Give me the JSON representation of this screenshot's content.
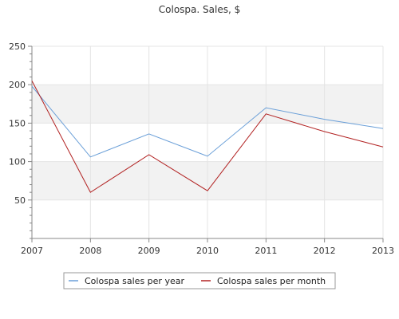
{
  "chart_data": {
    "type": "line",
    "title": "Colospa. Sales, $",
    "xlabel": "",
    "ylabel": "",
    "x": [
      "2007",
      "2008",
      "2009",
      "2010",
      "2011",
      "2012",
      "2013"
    ],
    "ylim": [
      0,
      250
    ],
    "yticks": [
      50,
      100,
      150,
      200,
      250
    ],
    "series": [
      {
        "name": "Colospa sales per year",
        "color": "#6a9fd8",
        "values": [
          198,
          106,
          136,
          107,
          170,
          155,
          143
        ]
      },
      {
        "name": "Colospa sales per month",
        "color": "#b22222",
        "values": [
          205,
          60,
          109,
          62,
          162,
          139,
          119
        ]
      }
    ],
    "grid": true,
    "background_bands": "alternating light grey",
    "legend_position": "bottom"
  }
}
